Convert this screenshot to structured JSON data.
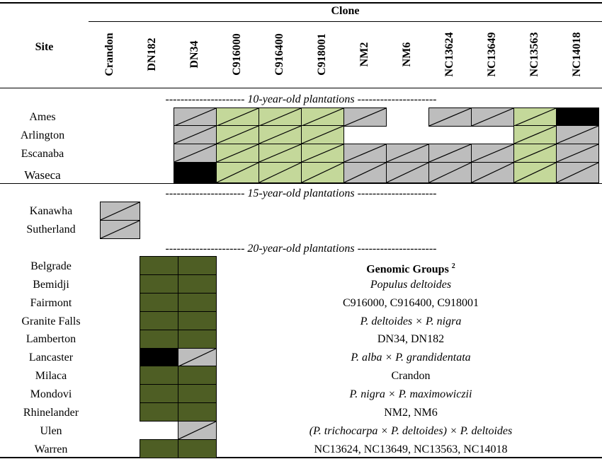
{
  "header": {
    "clone_label": "Clone",
    "site_label": "Site",
    "clones": [
      "Crandon",
      "DN182",
      "DN34",
      "C916000",
      "C916400",
      "C918001",
      "NM2",
      "NM6",
      "NC13624",
      "NC13649",
      "NC13563",
      "NC14018"
    ]
  },
  "sections": {
    "ten": "--------------------- 10-year-old plantations ---------------------",
    "fifteen": "--------------------- 15-year-old plantations ---------------------",
    "twenty": "--------------------- 20-year-old plantations ---------------------"
  },
  "sites_10": [
    "Ames",
    "Arlington",
    "Escanaba",
    "Waseca"
  ],
  "sites_15": [
    "Kanawha",
    "Sutherland"
  ],
  "sites_20": [
    "Belgrade",
    "Bemidji",
    "Fairmont",
    "Granite Falls",
    "Lamberton",
    "Lancaster",
    "Milaca",
    "Mondovi",
    "Rhinelander",
    "Ulen",
    "Warren"
  ],
  "genomic_groups": {
    "title": "Genomic Groups",
    "note": "2",
    "lines": [
      "Populus deltoides",
      "C916000, C916400, C918001",
      "P. deltoides × P. nigra",
      "DN34, DN182",
      "P. alba × P. grandidentata",
      "Crandon",
      "P. nigra × P. maximowiczii",
      "NM2, NM6",
      "(P. trichocarpa × P. deltoides) × P. deltoides",
      "NC13624, NC13649, NC13563, NC14018"
    ]
  },
  "legend_colors": {
    "gray": "#bdbdbd",
    "light_green": "#c4d89a",
    "dark_green": "#4e5e24",
    "black": "#000000"
  }
}
